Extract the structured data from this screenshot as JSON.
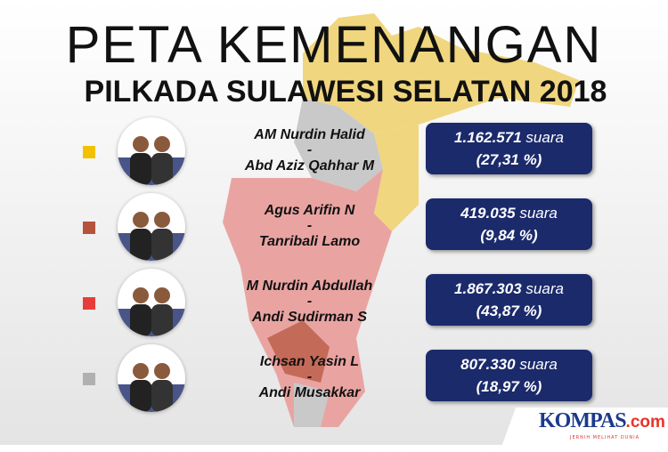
{
  "title": {
    "line1": "PETA KEMENANGAN",
    "line2": "PILKADA SULAWESI SELATAN 2018"
  },
  "colors": {
    "yellow": "#f2c200",
    "brown": "#b5533c",
    "red": "#e83c3c",
    "grey": "#b0b0b0",
    "box": "#1b2a6b"
  },
  "candidates": [
    {
      "line1": "AM Nurdin Halid",
      "sep": "-",
      "line2": "Abd Aziz Qahhar M",
      "votes": "1.162.571",
      "unit": "suara",
      "percent": "(27,31 %)",
      "color": "#f2c200"
    },
    {
      "line1": "Agus Arifin N",
      "sep": "-",
      "line2": "Tanribali Lamo",
      "votes": "419.035",
      "unit": "suara",
      "percent": "(9,84 %)",
      "color": "#b5533c"
    },
    {
      "line1": "M Nurdin Abdullah",
      "sep": "-",
      "line2": "Andi Sudirman S",
      "votes": "1.867.303",
      "unit": "suara",
      "percent": "(43,87 %)",
      "color": "#e83c3c"
    },
    {
      "line1": "Ichsan Yasin L",
      "sep": "-",
      "line2": "Andi Musakkar",
      "votes": "807.330",
      "unit": "suara",
      "percent": "(18,97 %)",
      "color": "#b0b0b0"
    }
  ],
  "logo": {
    "name": "KOMPAS",
    "suffix": ".com",
    "tagline": "JERNIH MELIHAT DUNIA"
  }
}
